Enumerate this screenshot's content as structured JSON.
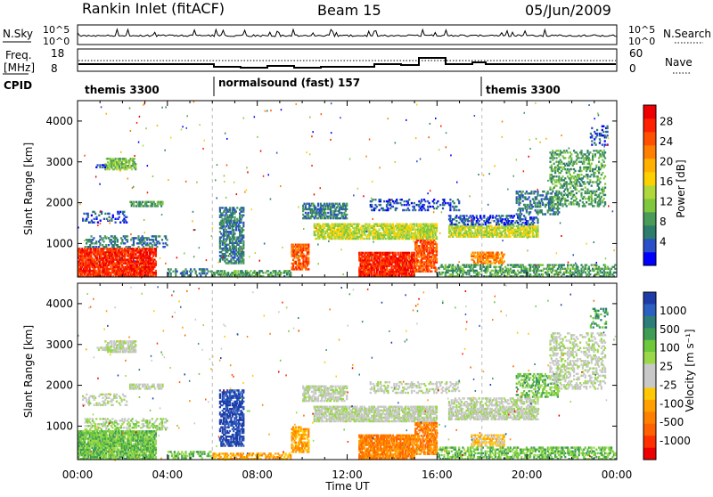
{
  "header": {
    "station": "Rankin Inlet (fitACF)",
    "beam": "Beam 15",
    "date": "05/Jun/2009"
  },
  "noise_panel": {
    "left_label": "N.Sky",
    "right_label": "N.Search",
    "y_tick_top": "10^5",
    "y_tick_bottom": "10^0",
    "right_tick_top": "10^5",
    "right_tick_bottom": "10^0"
  },
  "freq_panel": {
    "left_label_1": "Freq.",
    "left_label_2": "[MHz]",
    "right_label": "Nave",
    "left_tick_top": "18",
    "left_tick_bottom": "8",
    "right_tick_top": "60",
    "right_tick_bottom": "0"
  },
  "cpid_panel": {
    "label": "CPID",
    "segments": [
      {
        "label": "themis 3300",
        "start_hour": 0,
        "end_hour": 6
      },
      {
        "label": "normalsound (fast) 157",
        "start_hour": 6,
        "end_hour": 18
      },
      {
        "label": "themis 3300",
        "start_hour": 18,
        "end_hour": 24
      }
    ]
  },
  "chart_data": [
    {
      "type": "heatmap",
      "title": "",
      "parameter": "Power",
      "ylabel": "Slant Range [km]",
      "xlabel": "",
      "xlim": [
        0,
        24
      ],
      "ylim": [
        180,
        4500
      ],
      "y_ticks": [
        "1000",
        "2000",
        "3000",
        "4000"
      ],
      "x_ticks": [
        "00:00",
        "04:00",
        "08:00",
        "12:00",
        "16:00",
        "20:00",
        "00:00"
      ],
      "colorbar": {
        "label": "Power [dB]",
        "ticks": [
          "4",
          "8",
          "12",
          "16",
          "20",
          "24",
          "28"
        ],
        "colors": [
          "#0000ff",
          "#2a4fc8",
          "#2e7d6c",
          "#4a9a5a",
          "#7fc83e",
          "#b0d83c",
          "#ffd000",
          "#ffb000",
          "#ff8000",
          "#ff5000",
          "#ff2000",
          "#ee0000"
        ]
      }
    },
    {
      "type": "heatmap",
      "title": "",
      "parameter": "Velocity",
      "ylabel": "Slant Range [km]",
      "xlabel": "Time UT",
      "xlim": [
        0,
        24
      ],
      "ylim": [
        180,
        4500
      ],
      "y_ticks": [
        "1000",
        "2000",
        "3000",
        "4000"
      ],
      "x_ticks": [
        "00:00",
        "04:00",
        "08:00",
        "12:00",
        "16:00",
        "20:00",
        "00:00"
      ],
      "colorbar": {
        "label": "Velocity [m s⁻¹]",
        "ticks": [
          "1000",
          "500",
          "100",
          "25",
          "-25",
          "-100",
          "-500",
          "-1000"
        ],
        "colors": [
          "#1e3ca8",
          "#2b5fc0",
          "#2e7d78",
          "#3f9c55",
          "#6ec83c",
          "#9ad84a",
          "#c8c8c8",
          "#c8c8c8",
          "#ffc800",
          "#ffa000",
          "#ff8000",
          "#ff6000",
          "#ff3000",
          "#ee0000"
        ]
      }
    }
  ]
}
